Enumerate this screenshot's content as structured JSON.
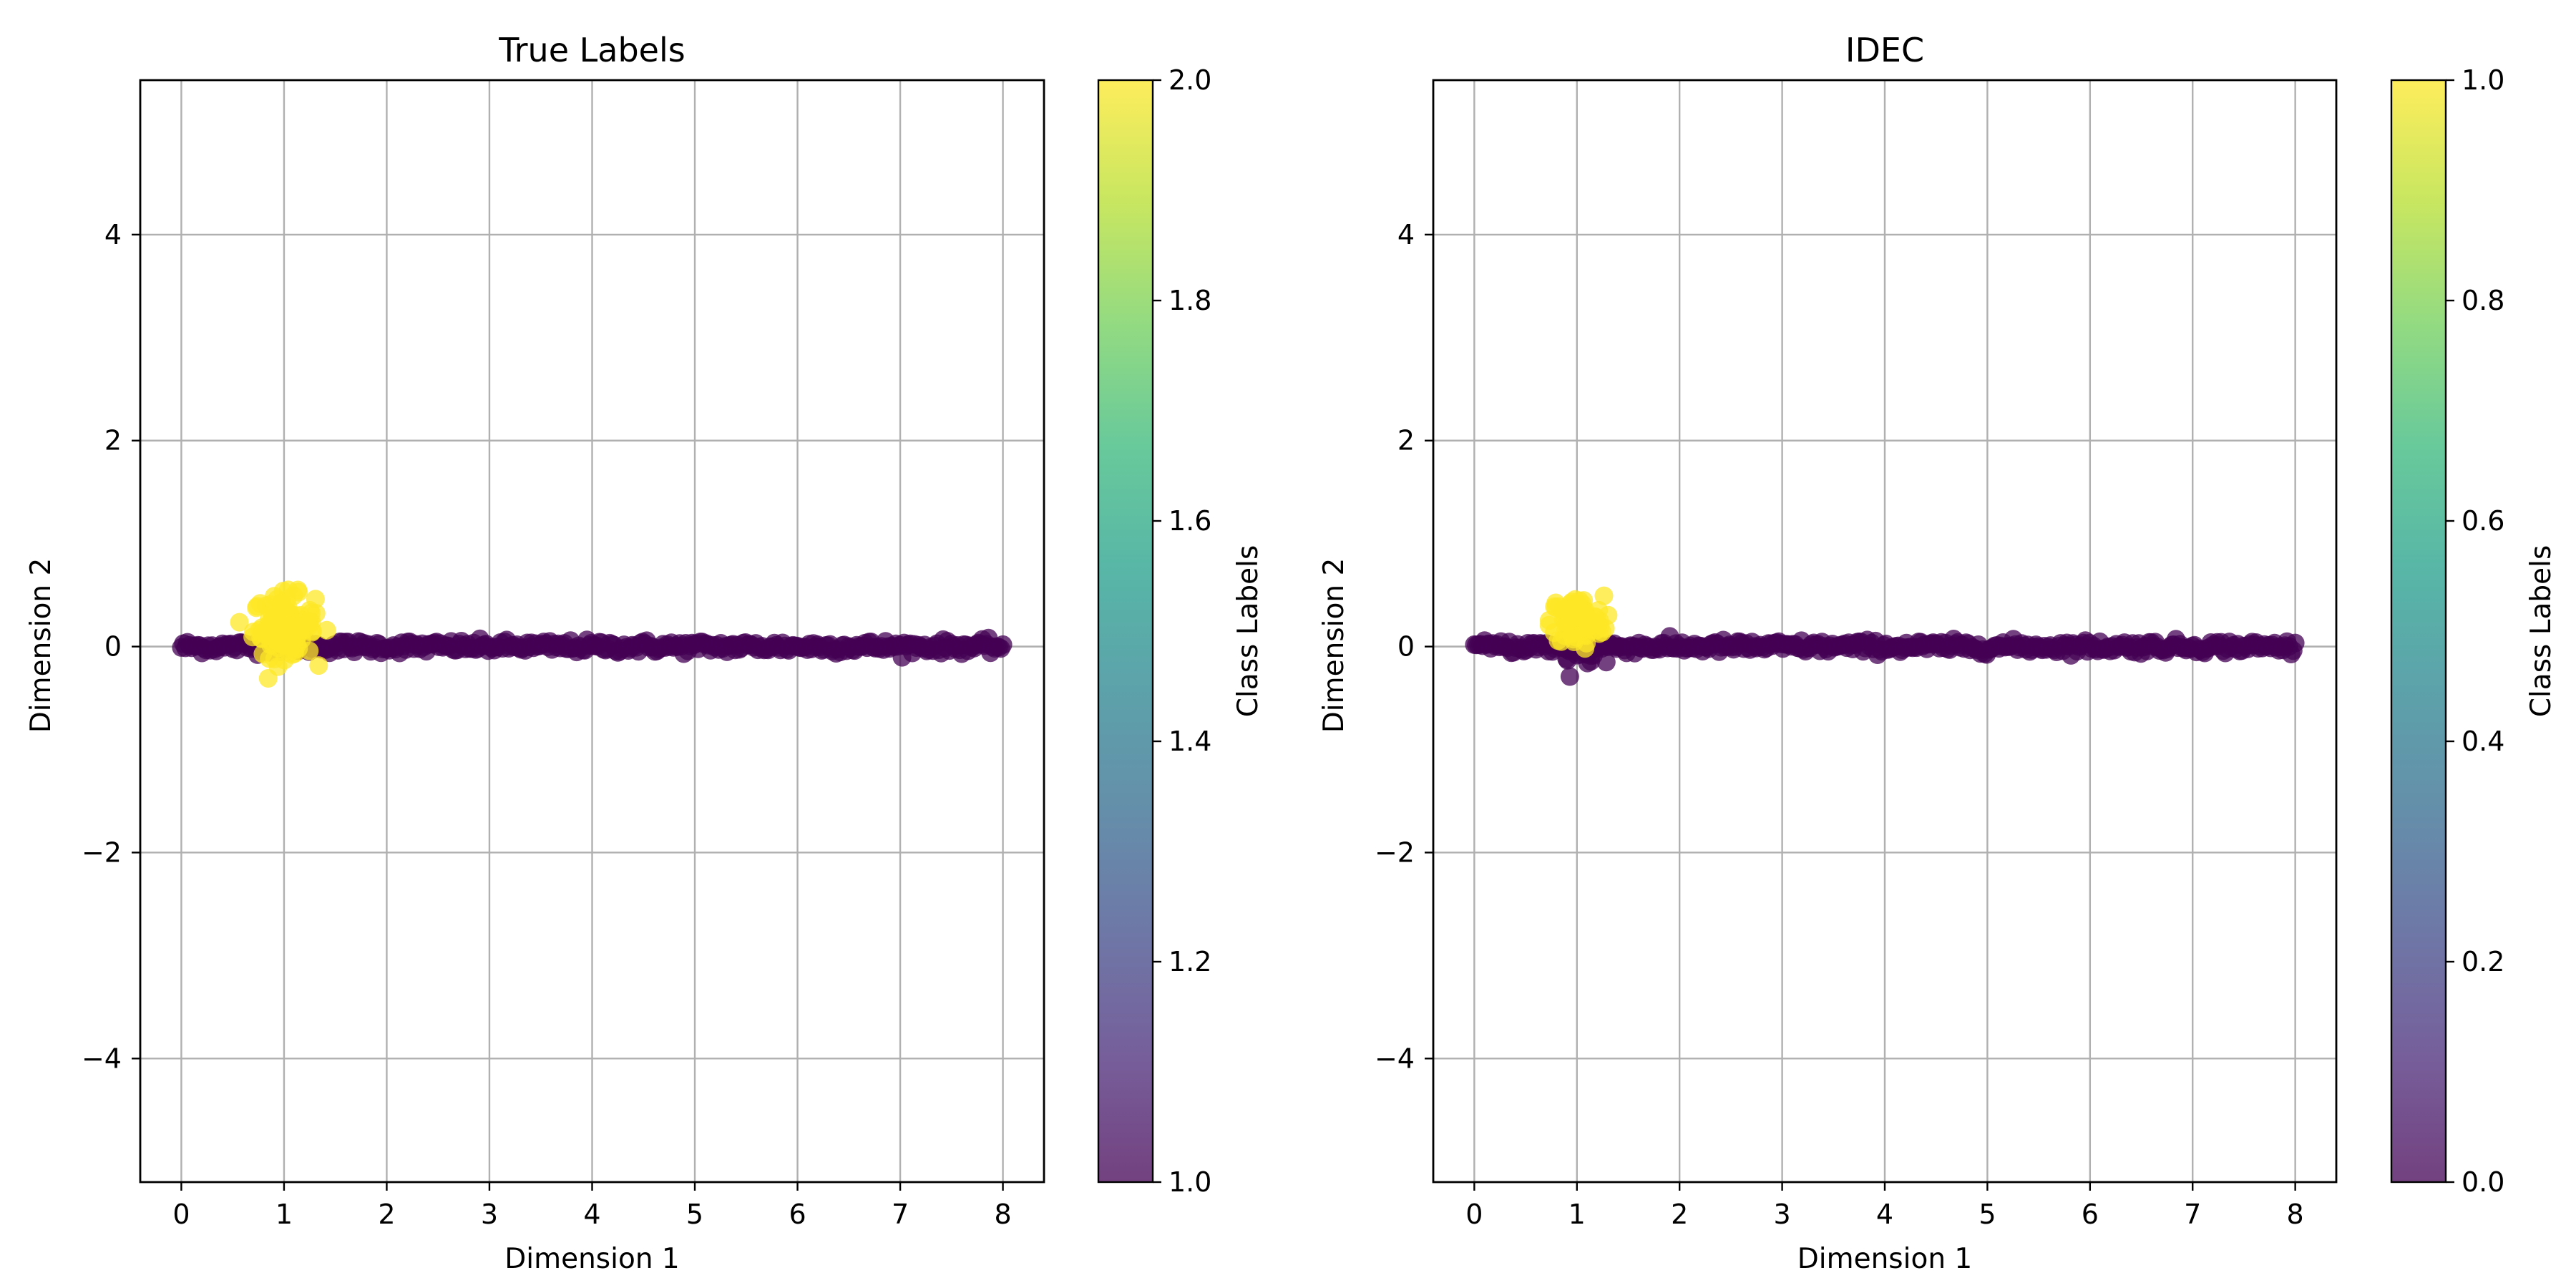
{
  "chart_data": [
    {
      "type": "scatter",
      "title": "True Labels",
      "xlabel": "Dimension 1",
      "ylabel": "Dimension 2",
      "xlim": [
        -0.4,
        8.4
      ],
      "ylim": [
        -5.2,
        5.5
      ],
      "xticks": [
        0,
        1,
        2,
        3,
        4,
        5,
        6,
        7,
        8
      ],
      "yticks": [
        -4,
        -2,
        0,
        2,
        4
      ],
      "ytick_labels": [
        "−4",
        "−2",
        "0",
        "2",
        "4"
      ],
      "grid": true,
      "colorbar": {
        "label": "Class Labels",
        "range": [
          1.0,
          2.0
        ],
        "ticks": [
          1.0,
          1.2,
          1.4,
          1.6,
          1.8,
          2.0
        ],
        "tick_labels": [
          "1.0",
          "1.2",
          "1.4",
          "1.6",
          "1.8",
          "2.0"
        ],
        "colormap": "viridis"
      },
      "series": [
        {
          "class": 1,
          "color": "#440154",
          "distribution": "line",
          "x_range": [
            0,
            8
          ],
          "y_center": 0.0,
          "y_spread": 0.03,
          "count": 400
        },
        {
          "class": 2,
          "color": "#fde725",
          "distribution": "blob",
          "x_center": 1.0,
          "y_center": 0.2,
          "x_spread": 0.15,
          "y_spread": 0.15,
          "count": 120
        }
      ]
    },
    {
      "type": "scatter",
      "title": "IDEC",
      "xlabel": "Dimension 1",
      "ylabel": "Dimension 2",
      "xlim": [
        -0.4,
        8.4
      ],
      "ylim": [
        -5.2,
        5.5
      ],
      "xticks": [
        0,
        1,
        2,
        3,
        4,
        5,
        6,
        7,
        8
      ],
      "yticks": [
        -4,
        -2,
        0,
        2,
        4
      ],
      "ytick_labels": [
        "−4",
        "−2",
        "0",
        "2",
        "4"
      ],
      "grid": true,
      "colorbar": {
        "label": "Class Labels",
        "range": [
          0.0,
          1.0
        ],
        "ticks": [
          0.0,
          0.2,
          0.4,
          0.6,
          0.8,
          1.0
        ],
        "tick_labels": [
          "0.0",
          "0.2",
          "0.4",
          "0.6",
          "0.8",
          "1.0"
        ],
        "colormap": "viridis"
      },
      "series": [
        {
          "class": 0,
          "color": "#440154",
          "distribution": "line",
          "x_range": [
            0,
            8
          ],
          "y_center": 0.0,
          "y_spread": 0.03,
          "count": 400
        },
        {
          "class": 0,
          "color": "#440154",
          "distribution": "blob",
          "x_center": 1.0,
          "y_center": -0.05,
          "x_spread": 0.12,
          "y_spread": 0.06,
          "count": 30
        },
        {
          "class": 1,
          "color": "#fde725",
          "distribution": "blob",
          "x_center": 1.0,
          "y_center": 0.25,
          "x_spread": 0.13,
          "y_spread": 0.12,
          "count": 100
        }
      ]
    }
  ],
  "colors": {
    "viridis": [
      "#440154",
      "#482878",
      "#3e4989",
      "#31688e",
      "#26828e",
      "#1f9e89",
      "#35b779",
      "#6ece58",
      "#b5de2b",
      "#fde725"
    ],
    "grid": "#b0b0b0",
    "axis": "#000000"
  }
}
